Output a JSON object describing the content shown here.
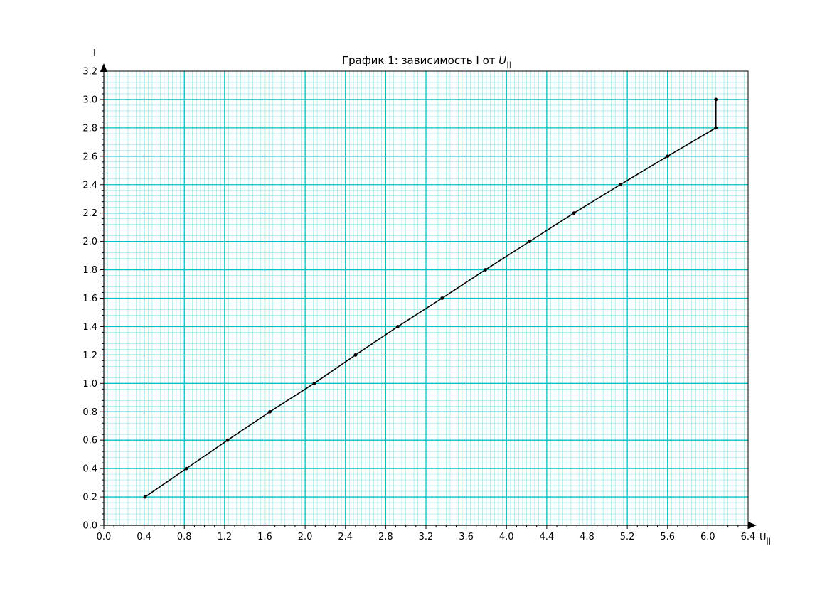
{
  "chart_data": {
    "type": "line",
    "title_text": "График 1: зависимость I от ",
    "title_var": "U",
    "title_sub": "||",
    "xlabel": "U",
    "xlabel_sub": "||",
    "ylabel": "I",
    "xlim": [
      0,
      6.4
    ],
    "ylim": [
      0,
      3.2
    ],
    "x_major_step": 0.4,
    "y_major_step": 0.2,
    "x_minor_per_major": 10,
    "y_minor_per_major": 5,
    "grid": true,
    "x_ticks": [
      "0.0",
      "0.4",
      "0.8",
      "1.2",
      "1.6",
      "2.0",
      "2.4",
      "2.8",
      "3.2",
      "3.6",
      "4.0",
      "4.4",
      "4.8",
      "5.2",
      "5.6",
      "6.0",
      "6.4"
    ],
    "y_ticks": [
      "0.0",
      "0.2",
      "0.4",
      "0.6",
      "0.8",
      "1.0",
      "1.2",
      "1.4",
      "1.6",
      "1.8",
      "2.0",
      "2.2",
      "2.4",
      "2.6",
      "2.8",
      "3.0",
      "3.2"
    ],
    "colors": {
      "grid_major": "#00c0c0",
      "grid_minor": "#8fe3e3",
      "line": "#000000",
      "axis": "#000000"
    },
    "series": [
      {
        "x": [
          0.41,
          0.82,
          1.23,
          1.65,
          2.09,
          2.5,
          2.92,
          3.36,
          3.79,
          4.23,
          4.67,
          5.13,
          5.6,
          6.08,
          6.08
        ],
        "y": [
          0.2,
          0.4,
          0.6,
          0.8,
          1.0,
          1.2,
          1.4,
          1.6,
          1.8,
          2.0,
          2.2,
          2.4,
          2.6,
          2.8,
          3.0
        ]
      }
    ]
  }
}
